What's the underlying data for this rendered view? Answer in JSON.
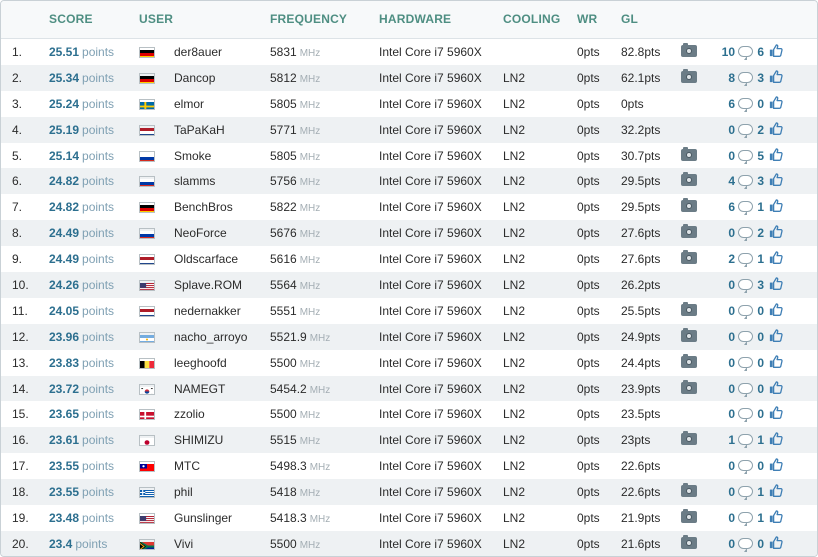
{
  "header": {
    "score": "SCORE",
    "user": "USER",
    "frequency": "FREQUENCY",
    "hardware": "HARDWARE",
    "cooling": "COOLING",
    "wr": "WR",
    "gl": "GL"
  },
  "colors": {
    "header_text": "#4e8e82",
    "score_text": "#2c6f8f",
    "alt_row": "#eef1f3"
  },
  "rows": [
    {
      "rank": "1.",
      "score": "25.51",
      "unit": "points",
      "flag": "germany",
      "user": "der8auer",
      "freq": "5831",
      "freq_unit": "MHz",
      "hardware": "Intel Core i7 5960X",
      "cooling": "",
      "wr": "0pts",
      "gl": "82.8pts",
      "has_photo": true,
      "comments": "10",
      "likes": "6"
    },
    {
      "rank": "2.",
      "score": "25.34",
      "unit": "points",
      "flag": "germany",
      "user": "Dancop",
      "freq": "5812",
      "freq_unit": "MHz",
      "hardware": "Intel Core i7 5960X",
      "cooling": "LN2",
      "wr": "0pts",
      "gl": "62.1pts",
      "has_photo": true,
      "comments": "8",
      "likes": "3"
    },
    {
      "rank": "3.",
      "score": "25.24",
      "unit": "points",
      "flag": "sweden",
      "user": "elmor",
      "freq": "5805",
      "freq_unit": "MHz",
      "hardware": "Intel Core i7 5960X",
      "cooling": "LN2",
      "wr": "0pts",
      "gl": "0pts",
      "has_photo": false,
      "comments": "6",
      "likes": "0"
    },
    {
      "rank": "4.",
      "score": "25.19",
      "unit": "points",
      "flag": "netherlands",
      "user": "TaPaKaH",
      "freq": "5771",
      "freq_unit": "MHz",
      "hardware": "Intel Core i7 5960X",
      "cooling": "LN2",
      "wr": "0pts",
      "gl": "32.2pts",
      "has_photo": false,
      "comments": "0",
      "likes": "2"
    },
    {
      "rank": "5.",
      "score": "25.14",
      "unit": "points",
      "flag": "russia",
      "user": "Smoke",
      "freq": "5805",
      "freq_unit": "MHz",
      "hardware": "Intel Core i7 5960X",
      "cooling": "LN2",
      "wr": "0pts",
      "gl": "30.7pts",
      "has_photo": true,
      "comments": "0",
      "likes": "5"
    },
    {
      "rank": "6.",
      "score": "24.82",
      "unit": "points",
      "flag": "russia",
      "user": "slamms",
      "freq": "5756",
      "freq_unit": "MHz",
      "hardware": "Intel Core i7 5960X",
      "cooling": "LN2",
      "wr": "0pts",
      "gl": "29.5pts",
      "has_photo": true,
      "comments": "4",
      "likes": "3"
    },
    {
      "rank": "7.",
      "score": "24.82",
      "unit": "points",
      "flag": "germany",
      "user": "BenchBros",
      "freq": "5822",
      "freq_unit": "MHz",
      "hardware": "Intel Core i7 5960X",
      "cooling": "LN2",
      "wr": "0pts",
      "gl": "29.5pts",
      "has_photo": true,
      "comments": "6",
      "likes": "1"
    },
    {
      "rank": "8.",
      "score": "24.49",
      "unit": "points",
      "flag": "russia",
      "user": "NeoForce",
      "freq": "5676",
      "freq_unit": "MHz",
      "hardware": "Intel Core i7 5960X",
      "cooling": "LN2",
      "wr": "0pts",
      "gl": "27.6pts",
      "has_photo": true,
      "comments": "0",
      "likes": "2"
    },
    {
      "rank": "9.",
      "score": "24.49",
      "unit": "points",
      "flag": "netherlands",
      "user": "Oldscarface",
      "freq": "5616",
      "freq_unit": "MHz",
      "hardware": "Intel Core i7 5960X",
      "cooling": "LN2",
      "wr": "0pts",
      "gl": "27.6pts",
      "has_photo": true,
      "comments": "2",
      "likes": "1"
    },
    {
      "rank": "10.",
      "score": "24.26",
      "unit": "points",
      "flag": "usa",
      "user": "Splave.ROM",
      "freq": "5564",
      "freq_unit": "MHz",
      "hardware": "Intel Core i7 5960X",
      "cooling": "LN2",
      "wr": "0pts",
      "gl": "26.2pts",
      "has_photo": false,
      "comments": "0",
      "likes": "3"
    },
    {
      "rank": "11.",
      "score": "24.05",
      "unit": "points",
      "flag": "netherlands",
      "user": "nedernakker",
      "freq": "5551",
      "freq_unit": "MHz",
      "hardware": "Intel Core i7 5960X",
      "cooling": "LN2",
      "wr": "0pts",
      "gl": "25.5pts",
      "has_photo": true,
      "comments": "0",
      "likes": "0"
    },
    {
      "rank": "12.",
      "score": "23.96",
      "unit": "points",
      "flag": "argentina",
      "user": "nacho_arroyo",
      "freq": "5521.9",
      "freq_unit": "MHz",
      "hardware": "Intel Core i7 5960X",
      "cooling": "LN2",
      "wr": "0pts",
      "gl": "24.9pts",
      "has_photo": true,
      "comments": "0",
      "likes": "0"
    },
    {
      "rank": "13.",
      "score": "23.83",
      "unit": "points",
      "flag": "belgium",
      "user": "leeghoofd",
      "freq": "5500",
      "freq_unit": "MHz",
      "hardware": "Intel Core i7 5960X",
      "cooling": "LN2",
      "wr": "0pts",
      "gl": "24.4pts",
      "has_photo": true,
      "comments": "0",
      "likes": "0"
    },
    {
      "rank": "14.",
      "score": "23.72",
      "unit": "points",
      "flag": "korea",
      "user": "NAMEGT",
      "freq": "5454.2",
      "freq_unit": "MHz",
      "hardware": "Intel Core i7 5960X",
      "cooling": "LN2",
      "wr": "0pts",
      "gl": "23.9pts",
      "has_photo": true,
      "comments": "0",
      "likes": "0"
    },
    {
      "rank": "15.",
      "score": "23.65",
      "unit": "points",
      "flag": "denmark",
      "user": "zzolio",
      "freq": "5500",
      "freq_unit": "MHz",
      "hardware": "Intel Core i7 5960X",
      "cooling": "LN2",
      "wr": "0pts",
      "gl": "23.5pts",
      "has_photo": false,
      "comments": "0",
      "likes": "0"
    },
    {
      "rank": "16.",
      "score": "23.61",
      "unit": "points",
      "flag": "japan",
      "user": "SHIMIZU",
      "freq": "5515",
      "freq_unit": "MHz",
      "hardware": "Intel Core i7 5960X",
      "cooling": "LN2",
      "wr": "0pts",
      "gl": "23pts",
      "has_photo": true,
      "comments": "1",
      "likes": "1"
    },
    {
      "rank": "17.",
      "score": "23.55",
      "unit": "points",
      "flag": "taiwan",
      "user": "MTC",
      "freq": "5498.3",
      "freq_unit": "MHz",
      "hardware": "Intel Core i7 5960X",
      "cooling": "LN2",
      "wr": "0pts",
      "gl": "22.6pts",
      "has_photo": false,
      "comments": "0",
      "likes": "0"
    },
    {
      "rank": "18.",
      "score": "23.55",
      "unit": "points",
      "flag": "greece",
      "user": "phil",
      "freq": "5418",
      "freq_unit": "MHz",
      "hardware": "Intel Core i7 5960X",
      "cooling": "LN2",
      "wr": "0pts",
      "gl": "22.6pts",
      "has_photo": true,
      "comments": "0",
      "likes": "1"
    },
    {
      "rank": "19.",
      "score": "23.48",
      "unit": "points",
      "flag": "usa",
      "user": "Gunslinger",
      "freq": "5418.3",
      "freq_unit": "MHz",
      "hardware": "Intel Core i7 5960X",
      "cooling": "LN2",
      "wr": "0pts",
      "gl": "21.9pts",
      "has_photo": true,
      "comments": "0",
      "likes": "1"
    },
    {
      "rank": "20.",
      "score": "23.4",
      "unit": "points",
      "flag": "south-africa",
      "user": "Vivi",
      "freq": "5500",
      "freq_unit": "MHz",
      "hardware": "Intel Core i7 5960X",
      "cooling": "LN2",
      "wr": "0pts",
      "gl": "21.6pts",
      "has_photo": true,
      "comments": "0",
      "likes": "0"
    }
  ]
}
